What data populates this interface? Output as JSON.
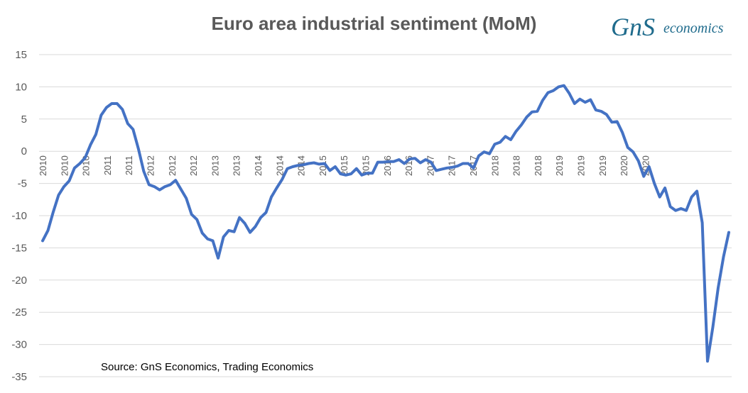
{
  "logo": {
    "brand": "GnS",
    "tagline": "economics",
    "brand_color": "#1f6b8c"
  },
  "chart_data": {
    "type": "line",
    "title": "Euro area industrial sentiment (MoM)",
    "xlabel": "",
    "ylabel": "",
    "ylim": [
      -35,
      15
    ],
    "yticks": [
      15,
      10,
      5,
      0,
      -5,
      -10,
      -15,
      -20,
      -25,
      -30,
      -35
    ],
    "grid": true,
    "legend": "none",
    "line_color": "#4472c4",
    "source": "Source: GnS Economics, Trading Economics",
    "x_tick_labels": [
      "2010",
      "2010",
      "2010",
      "2011",
      "2011",
      "2012",
      "2012",
      "2012",
      "2013",
      "2013",
      "2014",
      "2014",
      "2014",
      "2015",
      "2015",
      "2015",
      "2016",
      "2016",
      "2017",
      "2017",
      "2017",
      "2018",
      "2018",
      "2018",
      "2019",
      "2019",
      "2019",
      "2020",
      "2020"
    ],
    "series": [
      {
        "values": [
          -13.9,
          -12.3,
          -9.4,
          -6.8,
          -5.5,
          -4.6,
          -2.6,
          -1.9,
          -1.0,
          1.0,
          2.6,
          5.6,
          6.8,
          7.4,
          7.4,
          6.5,
          4.3,
          3.4,
          0.4,
          -3.1,
          -5.2,
          -5.5,
          -6.0,
          -5.5,
          -5.2,
          -4.5,
          -5.9,
          -7.3,
          -9.8,
          -10.6,
          -12.7,
          -13.6,
          -13.9,
          -16.6,
          -13.3,
          -12.3,
          -12.5,
          -10.3,
          -11.2,
          -12.6,
          -11.7,
          -10.3,
          -9.5,
          -7.1,
          -5.7,
          -4.4,
          -2.7,
          -2.4,
          -2.2,
          -2.1,
          -1.9,
          -1.8,
          -2.0,
          -1.9,
          -3.0,
          -2.4,
          -3.5,
          -3.7,
          -3.5,
          -2.7,
          -3.7,
          -3.4,
          -3.4,
          -1.7,
          -1.7,
          -1.6,
          -1.6,
          -1.3,
          -1.9,
          -1.2,
          -1.1,
          -1.8,
          -1.3,
          -1.7,
          -3.0,
          -2.8,
          -2.6,
          -2.5,
          -2.3,
          -1.9,
          -1.9,
          -2.6,
          -0.7,
          -0.1,
          -0.4,
          1.1,
          1.4,
          2.3,
          1.8,
          3.1,
          4.1,
          5.3,
          6.1,
          6.2,
          7.9,
          9.1,
          9.4,
          10.0,
          10.2,
          9.0,
          7.4,
          8.1,
          7.6,
          8.0,
          6.4,
          6.2,
          5.7,
          4.5,
          4.6,
          2.9,
          0.6,
          -0.1,
          -1.5,
          -3.9,
          -2.4,
          -5.0,
          -7.1,
          -5.7,
          -8.6,
          -9.2,
          -8.9,
          -9.2,
          -7.1,
          -6.2,
          -11.1,
          -32.6,
          -27.3,
          -21.2,
          -16.4,
          -12.6
        ]
      }
    ]
  }
}
